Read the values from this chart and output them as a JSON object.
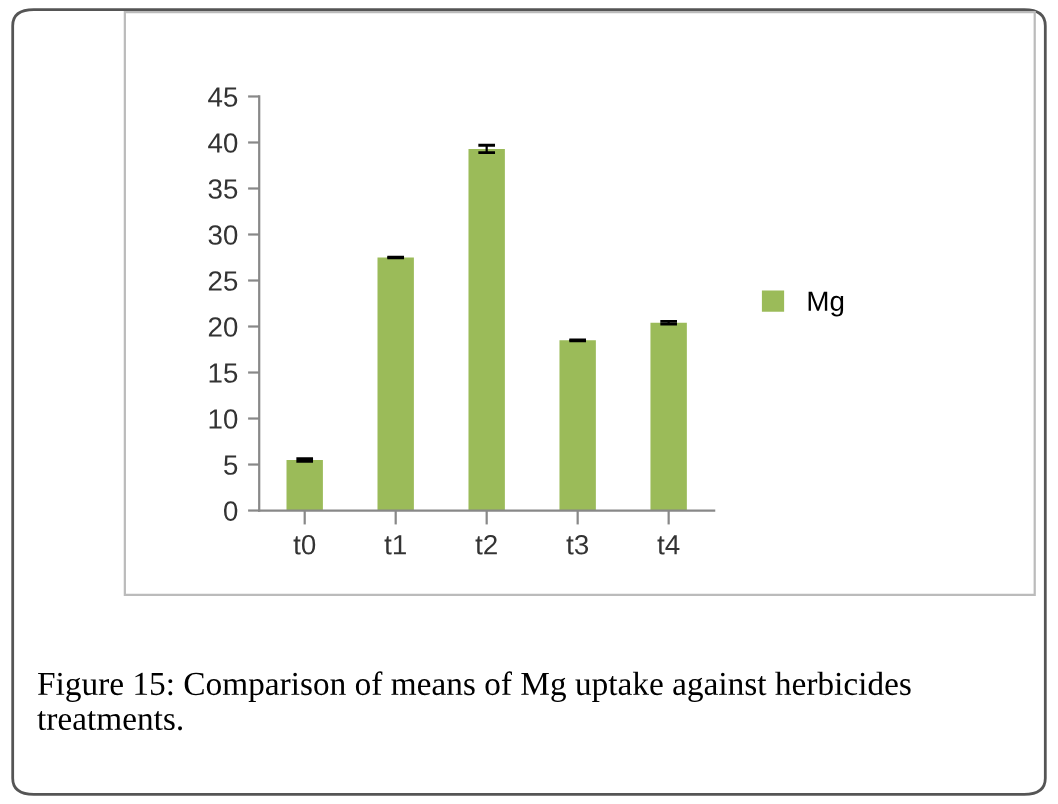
{
  "chart_data": {
    "type": "bar",
    "categories": [
      "t0",
      "t1",
      "t2",
      "t3",
      "t4"
    ],
    "series": [
      {
        "name": "Mg",
        "color": "#9bbb59",
        "values": [
          5.5,
          27.5,
          39.3,
          18.5,
          20.4
        ],
        "errors": [
          0.15,
          0.05,
          0.4,
          0.05,
          0.15
        ]
      }
    ],
    "ylim": [
      0,
      45
    ],
    "yticks": [
      0,
      5,
      10,
      15,
      20,
      25,
      30,
      35,
      40,
      45
    ],
    "grid": false,
    "legend": "right",
    "annotations": [
      "Figure 15: Comparison of means of Mg uptake against herbicides treatments."
    ]
  }
}
